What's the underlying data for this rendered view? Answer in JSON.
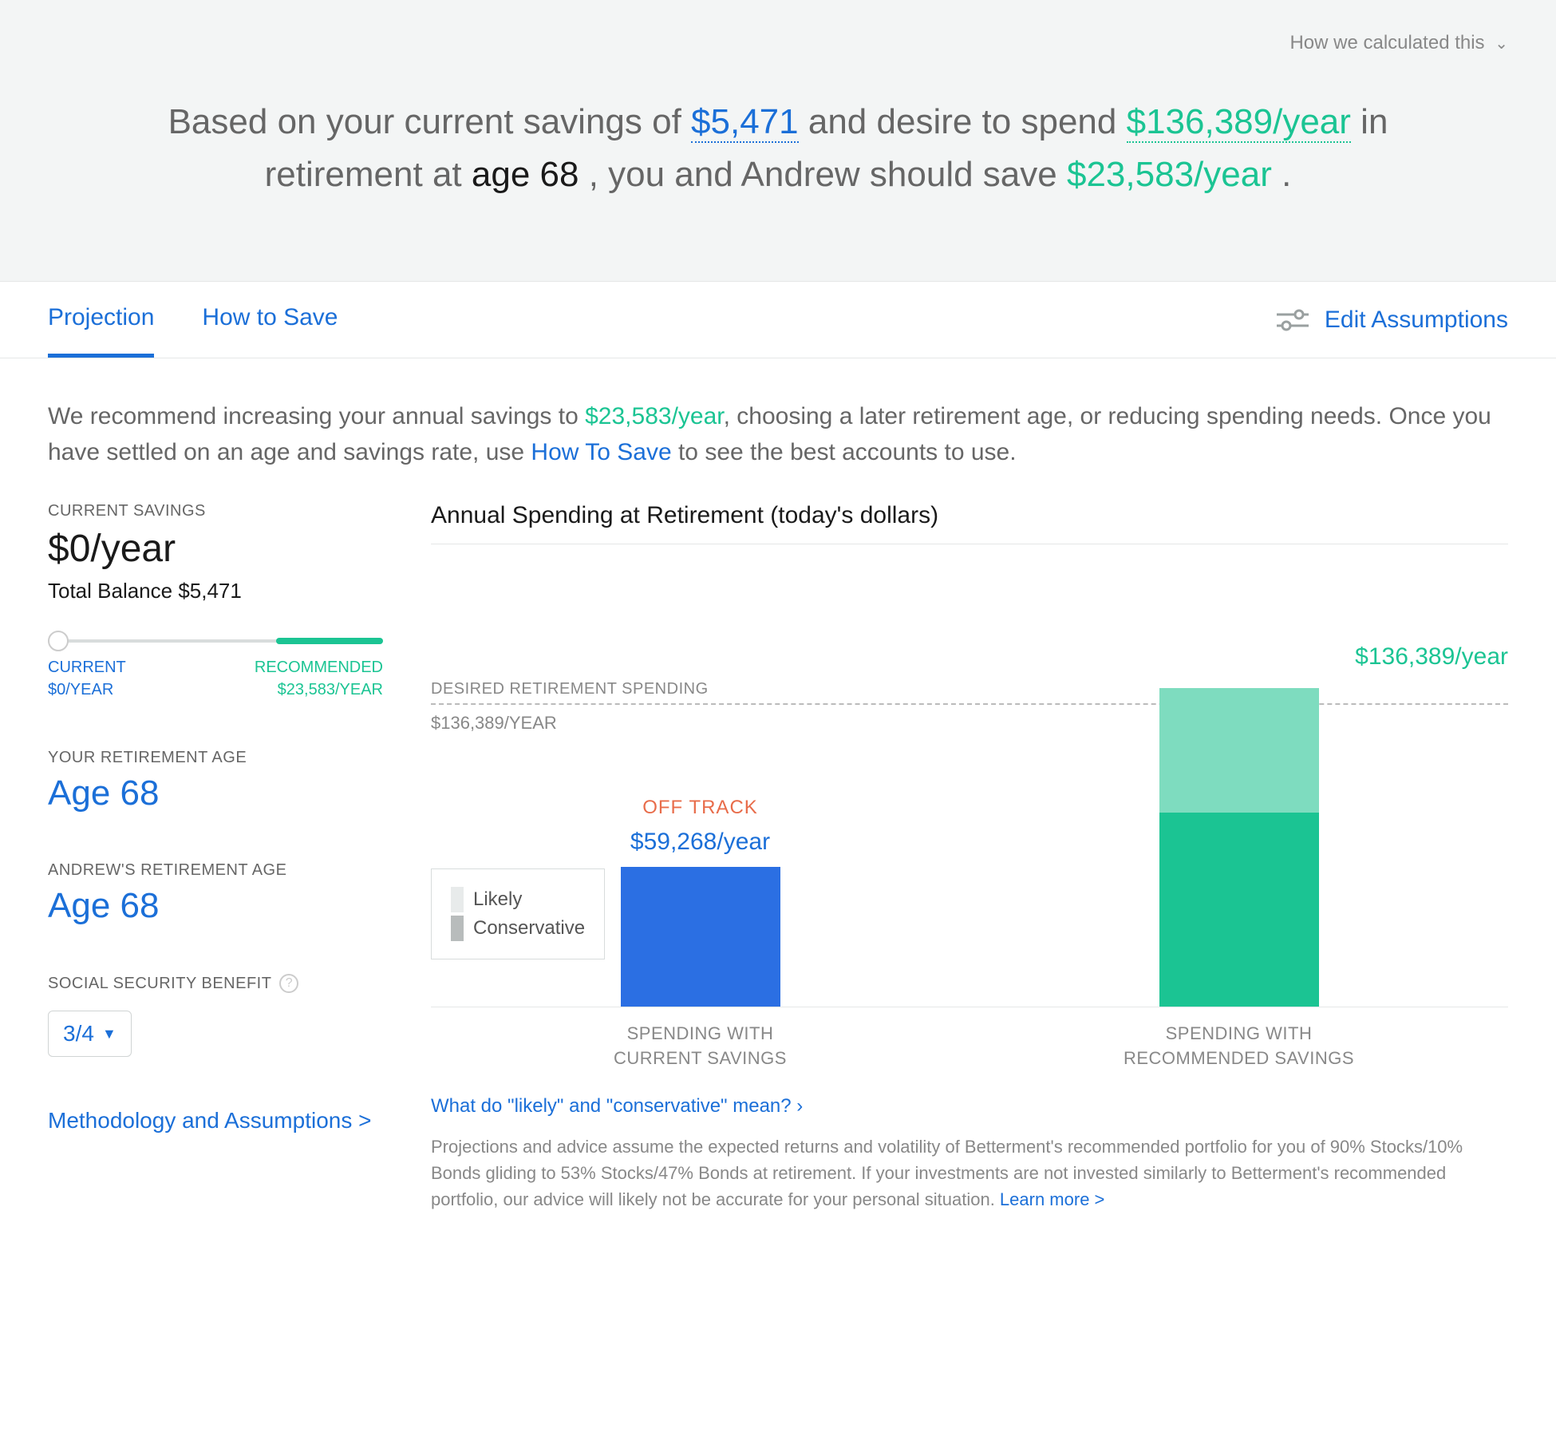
{
  "hero": {
    "calc_link": "How we calculated this",
    "prefix": "Based on your current savings of ",
    "savings": "$5,471",
    "mid1": " and desire to spend ",
    "spend": "$136,389/year",
    "mid2": " in retirement at ",
    "age": "age 68",
    "mid3": ", you and Andrew should save ",
    "save": "$23,583/year",
    "suffix": "."
  },
  "tabs": {
    "projection": "Projection",
    "how_to_save": "How to Save",
    "edit": "Edit Assumptions"
  },
  "recommend": {
    "t1": "We recommend increasing your annual savings to ",
    "amount": "$23,583/year",
    "t2": ", choosing a later retirement age, or reducing spending needs. Once you have settled on an age and savings rate, use ",
    "link": "How To Save",
    "t3": " to see the best accounts to use."
  },
  "left": {
    "current_savings_label": "CURRENT SAVINGS",
    "current_savings_value": "$0/year",
    "total_balance": "Total Balance $5,471",
    "slider": {
      "current_label": "CURRENT",
      "current_value": "$0/YEAR",
      "recommended_label": "RECOMMENDED",
      "recommended_value": "$23,583/YEAR",
      "thumb_pct": 0,
      "fill_start_pct": 68
    },
    "your_age_label": "YOUR RETIREMENT AGE",
    "your_age_value": "Age 68",
    "andrew_age_label": "ANDREW'S RETIREMENT AGE",
    "andrew_age_value": "Age 68",
    "ss_label": "SOCIAL SECURITY BENEFIT",
    "ss_value": "3/4",
    "methodology": "Methodology and Assumptions >"
  },
  "chart": {
    "title": "Annual Spending at Retirement (today's dollars)",
    "desired_label": "DESIRED RETIREMENT SPENDING",
    "desired_amount": "$136,389/year",
    "y_tick": "$136,389/YEAR",
    "off_track": "OFF TRACK",
    "legend_likely": "Likely",
    "legend_conservative": "Conservative",
    "colors": {
      "current_likely": "#2b6fe3",
      "current_conservative": "#b9cff3",
      "recommended_likely": "#1bc493",
      "recommended_conservative": "#7edcbf",
      "legend_likely": "#e8ebeb",
      "legend_conservative": "#b8bcbc"
    },
    "bars": {
      "current": {
        "label": "$59,268/year",
        "label_color": "#1b6fd8",
        "likely_h": 175,
        "conservative_h": 0,
        "x_line1": "SPENDING WITH",
        "x_line2": "CURRENT SAVINGS"
      },
      "recommended": {
        "label": "",
        "likely_h": 248,
        "conservative_h": 160,
        "x_line1": "SPENDING WITH",
        "x_line2": "RECOMMENDED SAVINGS"
      }
    },
    "footer_link": "What do \"likely\" and \"conservative\" mean? ›",
    "disclaimer": "Projections and advice assume the expected returns and volatility of Betterment's recommended portfolio for you of 90% Stocks/10% Bonds gliding to 53% Stocks/47% Bonds at retirement. If your investments are not invested similarly to Betterment's recommended portfolio, our advice will likely not be accurate for your personal situation. ",
    "learn_more": "Learn more >"
  }
}
